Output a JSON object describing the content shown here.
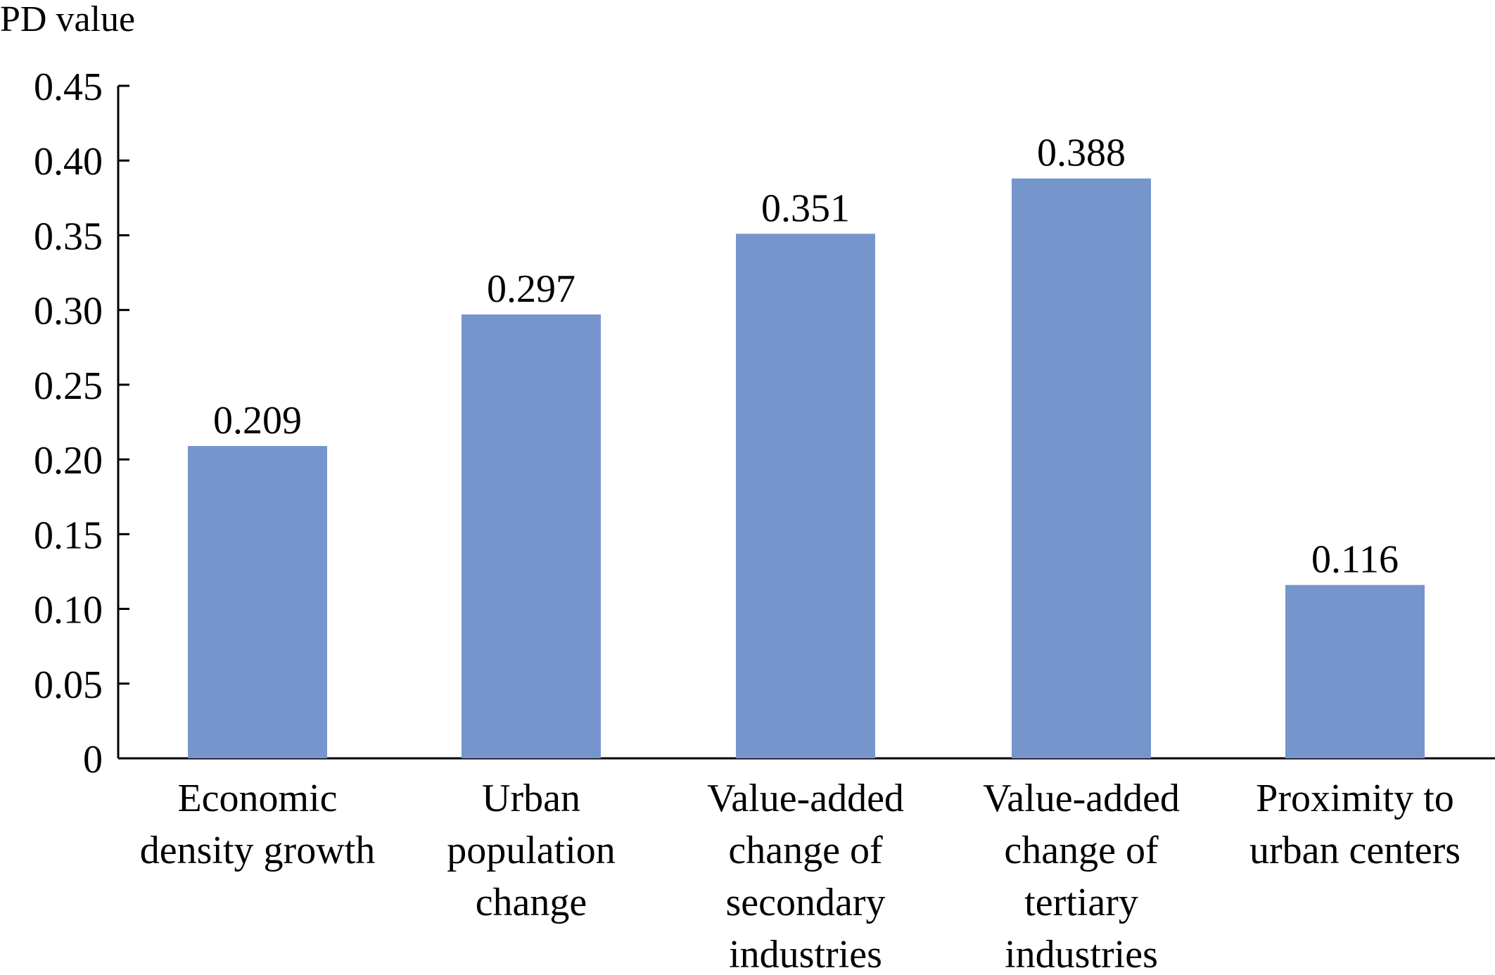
{
  "chart_data": {
    "type": "bar",
    "title": "",
    "xlabel": "",
    "ylabel": "PD value",
    "categories": [
      [
        "Economic",
        "density growth"
      ],
      [
        "Urban",
        "population",
        "change"
      ],
      [
        "Value-added",
        "change of",
        "secondary",
        "industries"
      ],
      [
        "Value-added",
        "change of",
        "tertiary",
        "industries"
      ],
      [
        "Proximity to",
        "urban centers"
      ]
    ],
    "values": [
      0.209,
      0.297,
      0.351,
      0.388,
      0.116
    ],
    "value_labels": [
      "0.209",
      "0.297",
      "0.351",
      "0.388",
      "0.116"
    ],
    "ylim": [
      0,
      0.45
    ],
    "yticks": [
      0,
      0.05,
      0.1,
      0.15,
      0.2,
      0.25,
      0.3,
      0.35,
      0.4,
      0.45
    ],
    "ytick_labels": [
      "0",
      "0.05",
      "0.10",
      "0.15",
      "0.20",
      "0.25",
      "0.30",
      "0.35",
      "0.40",
      "0.45"
    ],
    "bar_color": "#7595cc",
    "grid": false,
    "legend": "none"
  }
}
